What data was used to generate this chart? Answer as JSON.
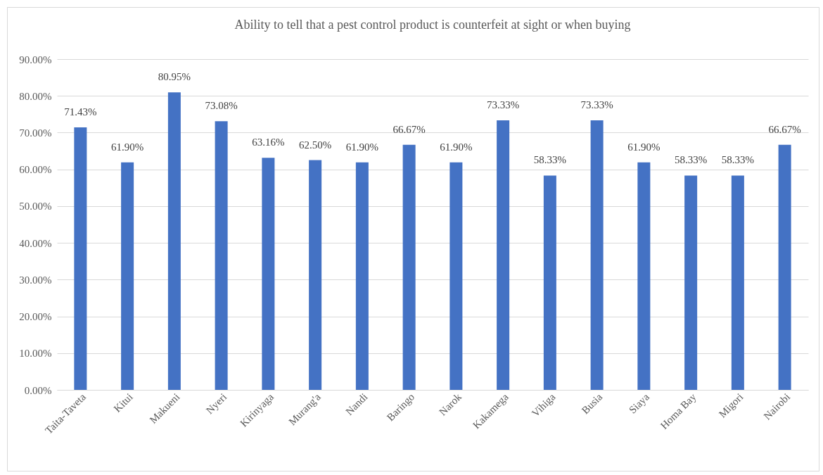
{
  "chart_data": {
    "type": "bar",
    "title": "Ability to tell that a pest control product is counterfeit at sight or when buying",
    "categories": [
      "Taita-Taveta",
      "Kitui",
      "Makueni",
      "Nyeri",
      "Kirinyaga",
      "Murang'a",
      "Nandi",
      "Baringo",
      "Narok",
      "Kakamega",
      "Vihiga",
      "Busia",
      "Siaya",
      "Homa Bay",
      "Migori",
      "Nairobi"
    ],
    "values": [
      71.43,
      61.9,
      80.95,
      73.08,
      63.16,
      62.5,
      61.9,
      66.67,
      61.9,
      73.33,
      58.33,
      73.33,
      61.9,
      58.33,
      58.33,
      66.67
    ],
    "value_labels": [
      "71.43%",
      "61.90%",
      "80.95%",
      "73.08%",
      "63.16%",
      "62.50%",
      "61.90%",
      "66.67%",
      "61.90%",
      "73.33%",
      "58.33%",
      "73.33%",
      "61.90%",
      "58.33%",
      "58.33%",
      "66.67%"
    ],
    "color": "#4472c4",
    "ylim": [
      0,
      90
    ],
    "yticks": [
      {
        "value": 0,
        "label": "0.00%"
      },
      {
        "value": 10,
        "label": "10.00%"
      },
      {
        "value": 20,
        "label": "20.00%"
      },
      {
        "value": 30,
        "label": "30.00%"
      },
      {
        "value": 40,
        "label": "40.00%"
      },
      {
        "value": 50,
        "label": "50.00%"
      },
      {
        "value": 60,
        "label": "60.00%"
      },
      {
        "value": 70,
        "label": "70.00%"
      },
      {
        "value": 80,
        "label": "80.00%"
      },
      {
        "value": 90,
        "label": "90.00%"
      }
    ],
    "grid": "y"
  }
}
